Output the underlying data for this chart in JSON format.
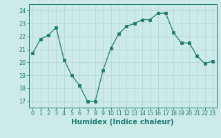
{
  "x": [
    0,
    1,
    2,
    3,
    4,
    5,
    6,
    7,
    8,
    9,
    10,
    11,
    12,
    13,
    14,
    15,
    16,
    17,
    18,
    19,
    20,
    21,
    22,
    23
  ],
  "y": [
    20.7,
    21.8,
    22.1,
    22.7,
    20.2,
    19.0,
    18.2,
    17.0,
    17.0,
    19.4,
    21.1,
    22.2,
    22.8,
    23.0,
    23.3,
    23.3,
    23.8,
    23.8,
    22.3,
    21.5,
    21.5,
    20.5,
    19.9,
    20.1
  ],
  "line_color": "#1a7a6e",
  "marker": "s",
  "marker_size": 2.2,
  "bg_color": "#cceae7",
  "grid_color": "#b8d8d5",
  "xlabel": "Humidex (Indice chaleur)",
  "xlim": [
    -0.5,
    23.5
  ],
  "ylim": [
    16.5,
    24.5
  ],
  "yticks": [
    17,
    18,
    19,
    20,
    21,
    22,
    23,
    24
  ],
  "xticks": [
    0,
    1,
    2,
    3,
    4,
    5,
    6,
    7,
    8,
    9,
    10,
    11,
    12,
    13,
    14,
    15,
    16,
    17,
    18,
    19,
    20,
    21,
    22,
    23
  ],
  "tick_label_size": 5.8,
  "xlabel_fontsize": 7.5
}
